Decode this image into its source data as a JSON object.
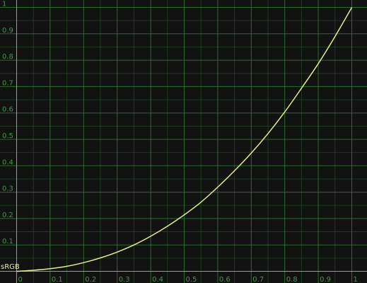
{
  "chart_data": {
    "type": "line",
    "title": "",
    "xlabel": "",
    "ylabel": "",
    "xlim": [
      0,
      1
    ],
    "ylim": [
      0,
      1
    ],
    "grid": true,
    "x_ticks": [
      "0",
      "0.1",
      "0.2",
      "0.3",
      "0.4",
      "0.5",
      "0.6",
      "0.7",
      "0.8",
      "0.9",
      "1"
    ],
    "y_ticks": [
      "0.1",
      "0.2",
      "0.3",
      "0.4",
      "0.5",
      "0.6",
      "0.7",
      "0.8",
      "0.9",
      "1"
    ],
    "series": [
      {
        "name": "sRGB",
        "x": [
          0,
          0.05,
          0.1,
          0.15,
          0.2,
          0.25,
          0.3,
          0.35,
          0.4,
          0.45,
          0.5,
          0.55,
          0.6,
          0.65,
          0.7,
          0.75,
          0.8,
          0.85,
          0.9,
          0.95,
          1
        ],
        "y": [
          0,
          0.004,
          0.01,
          0.019,
          0.033,
          0.051,
          0.073,
          0.1,
          0.133,
          0.171,
          0.214,
          0.262,
          0.319,
          0.381,
          0.448,
          0.522,
          0.604,
          0.694,
          0.787,
          0.89,
          1
        ]
      }
    ]
  },
  "colors": {
    "background": "#121212",
    "grid_major": "#2c6b2c",
    "grid_minor": "#1b3d1b",
    "axis": "#5cc45c",
    "tick_text": "#3f9a3f",
    "curve": "#e6ee8a"
  }
}
